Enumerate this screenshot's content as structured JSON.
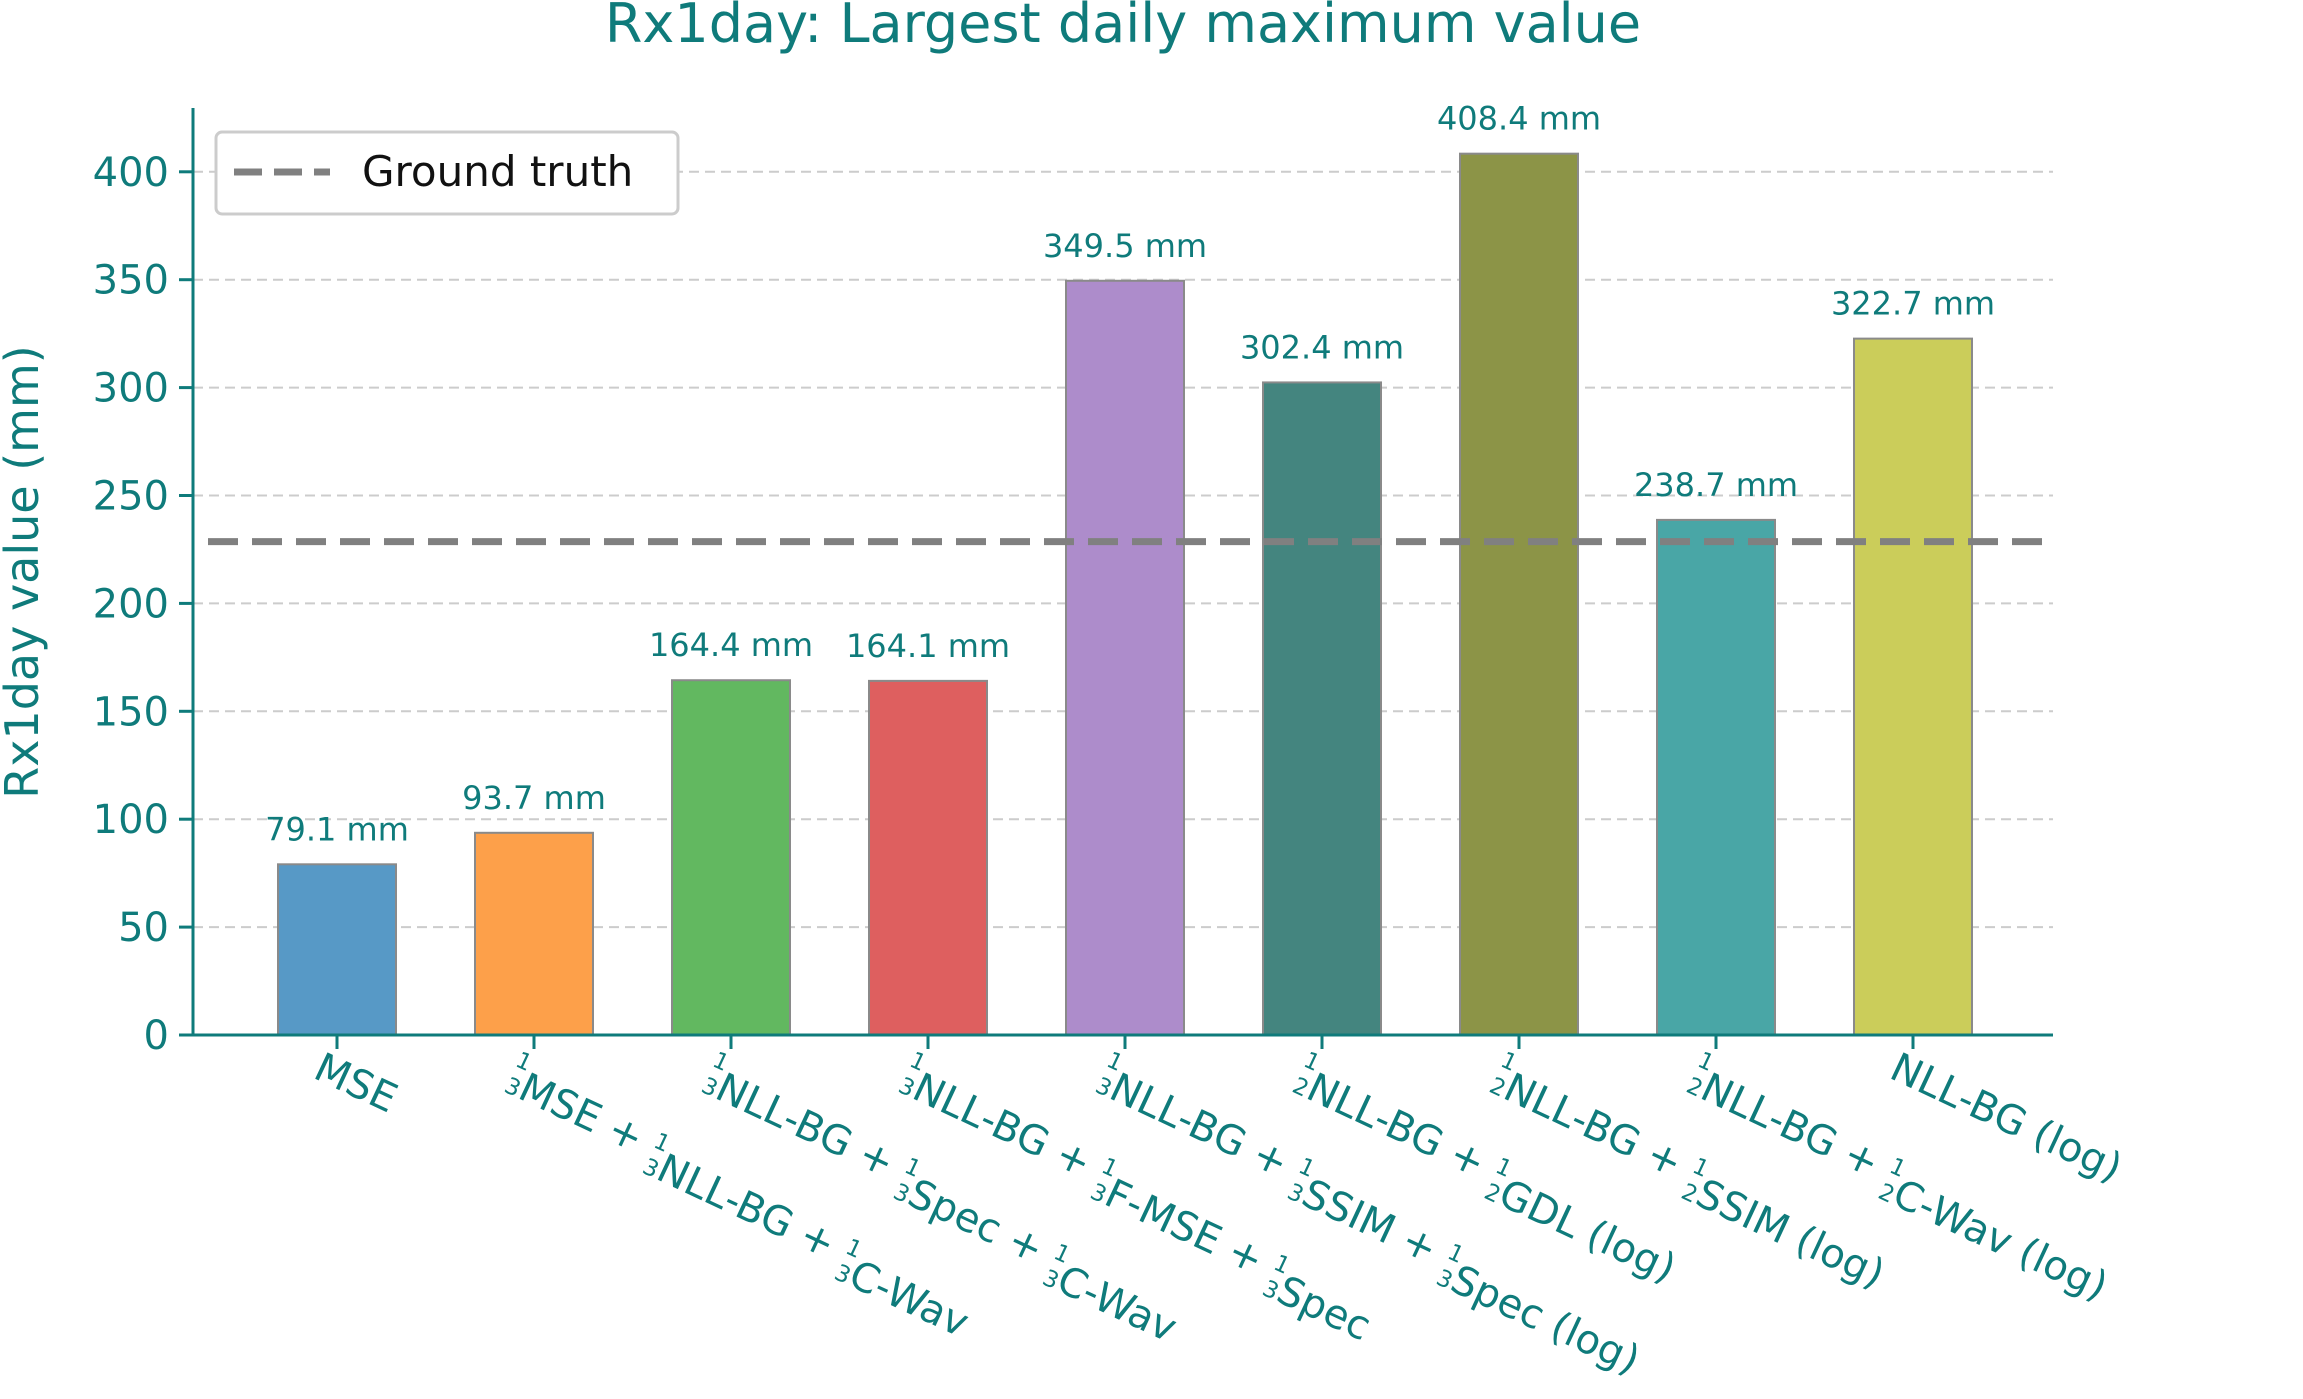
{
  "chart_data": {
    "type": "bar",
    "title": "Rx1day: Largest daily maximum value",
    "ylabel": "Rx1day value (mm)",
    "xlabel": "",
    "ylim": [
      0,
      430
    ],
    "yticks": [
      0,
      50,
      100,
      150,
      200,
      250,
      300,
      350,
      400
    ],
    "grid": "horizontal dashed",
    "legend_placement": "top-left",
    "categories": [
      {
        "label": [
          {
            "t": "MSE"
          }
        ]
      },
      {
        "label": [
          {
            "f": "1/3"
          },
          {
            "t": "MSE + "
          },
          {
            "f": "1/3"
          },
          {
            "t": "NLL-BG + "
          },
          {
            "f": "1/3"
          },
          {
            "t": "C-Wav"
          }
        ]
      },
      {
        "label": [
          {
            "f": "1/3"
          },
          {
            "t": "NLL-BG + "
          },
          {
            "f": "1/3"
          },
          {
            "t": "Spec + "
          },
          {
            "f": "1/3"
          },
          {
            "t": "C-Wav"
          }
        ]
      },
      {
        "label": [
          {
            "f": "1/3"
          },
          {
            "t": "NLL-BG + "
          },
          {
            "f": "1/3"
          },
          {
            "t": "F-MSE + "
          },
          {
            "f": "1/3"
          },
          {
            "t": "Spec"
          }
        ]
      },
      {
        "label": [
          {
            "f": "1/3"
          },
          {
            "t": "NLL-BG + "
          },
          {
            "f": "1/3"
          },
          {
            "t": "SSIM + "
          },
          {
            "f": "1/3"
          },
          {
            "t": "Spec (log)"
          }
        ]
      },
      {
        "label": [
          {
            "f": "1/2"
          },
          {
            "t": "NLL-BG + "
          },
          {
            "f": "1/2"
          },
          {
            "t": "GDL (log)"
          }
        ]
      },
      {
        "label": [
          {
            "f": "1/2"
          },
          {
            "t": "NLL-BG + "
          },
          {
            "f": "1/2"
          },
          {
            "t": "SSIM (log)"
          }
        ]
      },
      {
        "label": [
          {
            "f": "1/2"
          },
          {
            "t": "NLL-BG + "
          },
          {
            "f": "1/2"
          },
          {
            "t": "C-Wav (log)"
          }
        ]
      },
      {
        "label": [
          {
            "t": "NLL-BG (log)"
          }
        ]
      }
    ],
    "values": [
      79.1,
      93.7,
      164.4,
      164.1,
      349.5,
      302.4,
      408.4,
      238.7,
      322.7
    ],
    "value_labels": [
      "79.1 mm",
      "93.7 mm",
      "164.4 mm",
      "164.1 mm",
      "349.5 mm",
      "302.4 mm",
      "408.4 mm",
      "238.7 mm",
      "322.7 mm"
    ],
    "colors": [
      "#5799c6",
      "#fda04a",
      "#62b860",
      "#de5f5f",
      "#ad8ccb",
      "#44857f",
      "#8c9447",
      "#49a6a6",
      "#cbcd5a"
    ],
    "reference_line": {
      "name": "Ground truth",
      "value": 228.6,
      "color": "#808080",
      "style": "dashed"
    }
  }
}
